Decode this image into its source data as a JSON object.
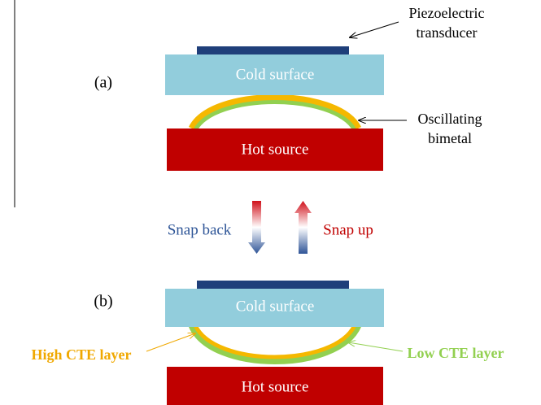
{
  "panel_a": {
    "label": "(a)",
    "cold_surface": "Cold surface",
    "hot_source": "Hot source",
    "transducer_label": [
      "Piezoelectric",
      "transducer"
    ],
    "bimetal_label": [
      "Oscillating",
      "bimetal"
    ]
  },
  "transition": {
    "snap_back": "Snap back",
    "snap_up": "Snap up"
  },
  "panel_b": {
    "label": "(b)",
    "cold_surface": "Cold surface",
    "hot_source": "Hot source",
    "high_cte": "High CTE layer",
    "low_cte": "Low CTE layer"
  }
}
